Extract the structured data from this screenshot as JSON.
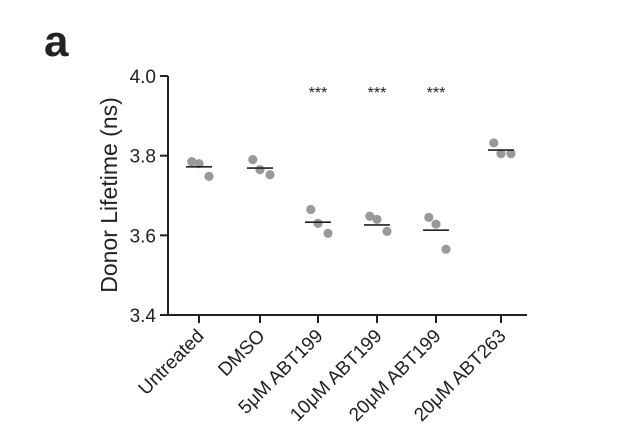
{
  "panel_label": "a",
  "chart_data": {
    "type": "scatter",
    "title": "",
    "xlabel": "",
    "ylabel": "Donor Lifetime (ns)",
    "ylim": [
      3.4,
      4.0
    ],
    "y_ticks": [
      "3.4",
      "3.6",
      "3.8",
      "4.0"
    ],
    "grid": false,
    "categories": [
      "Untreated",
      "DMSO",
      "5μM ABT199",
      "10μM ABT199",
      "20μM ABT199",
      "20μM ABT263"
    ],
    "points": [
      [
        3.785,
        3.78,
        3.748
      ],
      [
        3.79,
        3.765,
        3.752
      ],
      [
        3.665,
        3.63,
        3.605
      ],
      [
        3.648,
        3.64,
        3.61
      ],
      [
        3.645,
        3.628,
        3.565
      ],
      [
        3.832,
        3.805,
        3.805
      ]
    ],
    "means": [
      3.772,
      3.769,
      3.633,
      3.626,
      3.613,
      3.814
    ],
    "significance": [
      "",
      "",
      "***",
      "***",
      "***",
      ""
    ],
    "point_color": "#999999",
    "line_color": "#222222"
  }
}
